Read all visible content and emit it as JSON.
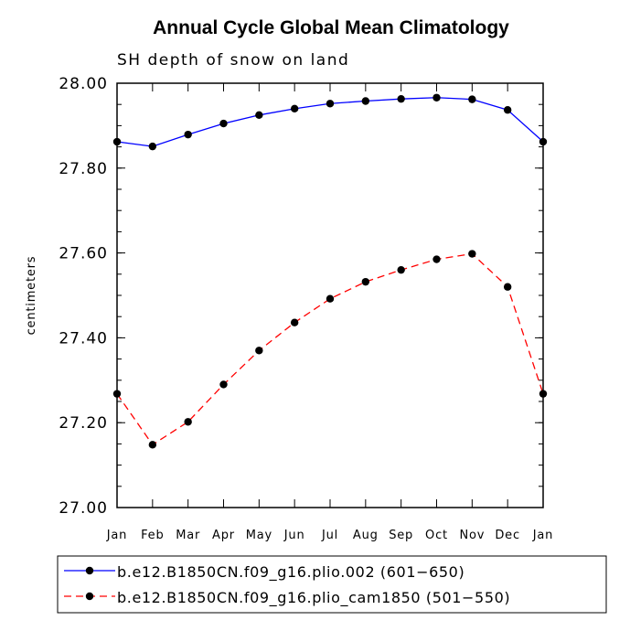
{
  "chart_data": {
    "type": "line",
    "title": "Annual Cycle Global Mean Climatology",
    "subtitle": "SH depth of snow on land",
    "xlabel": "",
    "ylabel": "centimeters",
    "categories": [
      "Jan",
      "Feb",
      "Mar",
      "Apr",
      "May",
      "Jun",
      "Jul",
      "Aug",
      "Sep",
      "Oct",
      "Nov",
      "Dec",
      "Jan"
    ],
    "ylim": [
      27.0,
      28.0
    ],
    "yticks": [
      "27.00",
      "27.20",
      "27.40",
      "27.60",
      "27.80",
      "28.00"
    ],
    "series": [
      {
        "name": "b.e12.B1850CN.f09_g16.plio.002 (601−650)",
        "color": "#0000ff",
        "dash": "solid",
        "values": [
          27.862,
          27.851,
          27.879,
          27.905,
          27.925,
          27.94,
          27.952,
          27.958,
          27.963,
          27.966,
          27.962,
          27.937,
          27.862
        ]
      },
      {
        "name": "b.e12.B1850CN.f09_g16.plio_cam1850 (501−550)",
        "color": "#ff0000",
        "dash": "dashed",
        "values": [
          27.268,
          27.148,
          27.202,
          27.29,
          27.37,
          27.436,
          27.492,
          27.532,
          27.56,
          27.585,
          27.598,
          27.52,
          27.268
        ]
      }
    ],
    "legend_position": "bottom"
  }
}
